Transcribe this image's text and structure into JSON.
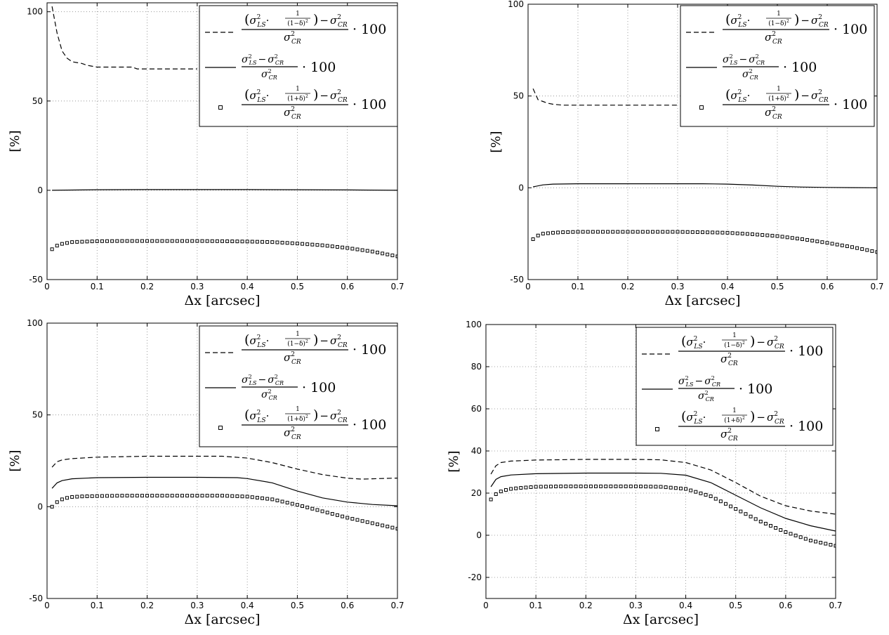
{
  "chart_data": [
    {
      "type": "line",
      "xlabel": "Δx [arcsec]",
      "ylabel": "[%]",
      "xlim": [
        0,
        0.7
      ],
      "ylim": [
        -50,
        105
      ],
      "xticks": [
        "0",
        "0.1",
        "0.2",
        "0.3",
        "0.4",
        "0.5",
        "0.6",
        "0.7"
      ],
      "yticks": [
        "-50",
        "0",
        "50",
        "100"
      ],
      "ytick_values": [
        -50,
        0,
        50,
        100
      ],
      "grid": true,
      "legend_position": "top-right",
      "series": [
        {
          "style": "dashed",
          "x": [
            0.01,
            0.02,
            0.03,
            0.04,
            0.05,
            0.07,
            0.08,
            0.1,
            0.12,
            0.14,
            0.15,
            0.17,
            0.18,
            0.2,
            0.22,
            0.24,
            0.26,
            0.28,
            0.3
          ],
          "y": [
            103,
            88,
            78,
            74,
            72,
            71,
            70,
            69,
            69,
            69,
            69,
            69,
            68,
            68,
            68,
            68,
            68,
            68,
            68
          ]
        },
        {
          "style": "solid",
          "x": [
            0.01,
            0.1,
            0.2,
            0.3,
            0.4,
            0.5,
            0.6,
            0.7
          ],
          "y": [
            0,
            0.3,
            0.4,
            0.4,
            0.4,
            0.3,
            0.2,
            0
          ]
        },
        {
          "style": "squares",
          "x": [
            0.01,
            0.02,
            0.03,
            0.04,
            0.05,
            0.07,
            0.1,
            0.15,
            0.2,
            0.25,
            0.3,
            0.35,
            0.4,
            0.45,
            0.5,
            0.55,
            0.6,
            0.65,
            0.7
          ],
          "y": [
            -33,
            -31,
            -30,
            -29.5,
            -29,
            -28.8,
            -28.5,
            -28.4,
            -28.4,
            -28.4,
            -28.4,
            -28.5,
            -28.7,
            -29,
            -29.8,
            -30.8,
            -32.3,
            -34.3,
            -37
          ]
        }
      ]
    },
    {
      "type": "line",
      "xlabel": "Δx [arcsec]",
      "ylabel": "[%]",
      "xlim": [
        0,
        0.7
      ],
      "ylim": [
        -50,
        100
      ],
      "xticks": [
        "0",
        "0.1",
        "0.2",
        "0.3",
        "0.4",
        "0.5",
        "0.6",
        "0.7"
      ],
      "yticks": [
        "-50",
        "0",
        "50",
        "100"
      ],
      "ytick_values": [
        -50,
        0,
        50,
        100
      ],
      "grid": true,
      "legend_position": "top-right",
      "series": [
        {
          "style": "dashed",
          "x": [
            0.01,
            0.02,
            0.03,
            0.04,
            0.05,
            0.07,
            0.08,
            0.1,
            0.12,
            0.14,
            0.16,
            0.18,
            0.2,
            0.22,
            0.24,
            0.26,
            0.28,
            0.3
          ],
          "y": [
            54,
            48,
            47,
            46,
            45.5,
            45,
            45,
            45,
            45,
            45,
            45,
            45,
            45,
            45,
            45,
            45,
            45,
            45
          ]
        },
        {
          "style": "solid",
          "x": [
            0.01,
            0.03,
            0.05,
            0.1,
            0.2,
            0.3,
            0.35,
            0.4,
            0.45,
            0.5,
            0.55,
            0.6,
            0.65,
            0.7
          ],
          "y": [
            0.5,
            1.6,
            2,
            2.2,
            2.2,
            2.2,
            2.2,
            2,
            1.5,
            0.8,
            0.4,
            0.2,
            0.1,
            0
          ]
        },
        {
          "style": "squares",
          "x": [
            0.01,
            0.02,
            0.03,
            0.05,
            0.07,
            0.1,
            0.15,
            0.2,
            0.25,
            0.3,
            0.35,
            0.4,
            0.45,
            0.5,
            0.55,
            0.6,
            0.65,
            0.7
          ],
          "y": [
            -28,
            -26,
            -25,
            -24.5,
            -24.2,
            -24,
            -24,
            -24,
            -24,
            -24,
            -24.2,
            -24.5,
            -25.3,
            -26.3,
            -28,
            -30,
            -32.3,
            -35
          ]
        }
      ]
    },
    {
      "type": "line",
      "xlabel": "Δx [arcsec]",
      "ylabel": "[%]",
      "xlim": [
        0,
        0.7
      ],
      "ylim": [
        -50,
        100
      ],
      "xticks": [
        "0",
        "0.1",
        "0.2",
        "0.3",
        "0.4",
        "0.5",
        "0.6",
        "0.7"
      ],
      "yticks": [
        "-50",
        "0",
        "50",
        "100"
      ],
      "ytick_values": [
        -50,
        0,
        50,
        100
      ],
      "grid": true,
      "legend_position": "top-right",
      "series": [
        {
          "style": "dashed",
          "x": [
            0.01,
            0.02,
            0.03,
            0.05,
            0.1,
            0.2,
            0.3,
            0.35,
            0.4,
            0.45,
            0.5,
            0.55,
            0.6,
            0.63,
            0.65,
            0.7
          ],
          "y": [
            21.5,
            24.5,
            25.5,
            26.2,
            27,
            27.5,
            27.5,
            27.5,
            26.5,
            24,
            20.5,
            17.5,
            15.5,
            15,
            15.2,
            15.6
          ]
        },
        {
          "style": "solid",
          "x": [
            0.01,
            0.02,
            0.03,
            0.05,
            0.1,
            0.2,
            0.3,
            0.38,
            0.4,
            0.45,
            0.5,
            0.55,
            0.6,
            0.65,
            0.7
          ],
          "y": [
            10,
            13,
            14.2,
            15.2,
            15.8,
            16,
            16,
            15.8,
            15.3,
            13,
            8.5,
            4.8,
            2.5,
            1.2,
            0.5
          ]
        },
        {
          "style": "squares",
          "x": [
            0.01,
            0.02,
            0.03,
            0.04,
            0.05,
            0.07,
            0.1,
            0.15,
            0.2,
            0.25,
            0.3,
            0.35,
            0.4,
            0.45,
            0.5,
            0.55,
            0.6,
            0.65,
            0.7
          ],
          "y": [
            0,
            2.5,
            4,
            4.8,
            5.3,
            5.6,
            5.8,
            6,
            6,
            6,
            6,
            6,
            5.5,
            4,
            1,
            -2.5,
            -6,
            -9,
            -12
          ]
        }
      ]
    },
    {
      "type": "line",
      "xlabel": "Δx [arcsec]",
      "ylabel": "[%]",
      "xlim": [
        0,
        0.7
      ],
      "ylim": [
        -30,
        100
      ],
      "xticks": [
        "0",
        "0.1",
        "0.2",
        "0.3",
        "0.4",
        "0.5",
        "0.6",
        "0.7"
      ],
      "yticks": [
        "-20",
        "0",
        "20",
        "40",
        "60",
        "80",
        "100"
      ],
      "ytick_values": [
        -20,
        0,
        20,
        40,
        60,
        80,
        100
      ],
      "grid": true,
      "legend_position": "top-right",
      "series": [
        {
          "style": "dashed",
          "x": [
            0.01,
            0.02,
            0.03,
            0.05,
            0.1,
            0.2,
            0.3,
            0.35,
            0.4,
            0.45,
            0.5,
            0.55,
            0.6,
            0.65,
            0.7
          ],
          "y": [
            29,
            33,
            34.5,
            35.2,
            35.7,
            36,
            36,
            35.8,
            34.5,
            31,
            25,
            18.5,
            14,
            11.5,
            10
          ]
        },
        {
          "style": "solid",
          "x": [
            0.01,
            0.02,
            0.03,
            0.05,
            0.1,
            0.2,
            0.3,
            0.35,
            0.4,
            0.45,
            0.5,
            0.55,
            0.6,
            0.65,
            0.7
          ],
          "y": [
            23,
            26.5,
            27.8,
            28.6,
            29.2,
            29.5,
            29.5,
            29.4,
            28.5,
            25,
            19,
            13,
            8,
            4.5,
            2
          ]
        },
        {
          "style": "squares",
          "x": [
            0.01,
            0.02,
            0.03,
            0.04,
            0.05,
            0.07,
            0.1,
            0.15,
            0.2,
            0.25,
            0.3,
            0.35,
            0.4,
            0.45,
            0.5,
            0.55,
            0.6,
            0.65,
            0.7
          ],
          "y": [
            17,
            19.5,
            20.8,
            21.5,
            22,
            22.5,
            23,
            23.2,
            23.2,
            23.2,
            23.2,
            23,
            22,
            18.5,
            12.5,
            6.5,
            1.5,
            -2.5,
            -5
          ]
        }
      ]
    }
  ],
  "legend": {
    "dashed": {
      "den": "σ",
      "den_sub": "CR",
      "mult": "· 100",
      "one": "1",
      "frac_den": "(1−δ)"
    },
    "solid": {
      "num": "σ",
      "num_sub1": "LS",
      "num_sub2": "CR",
      "den_sub": "CR",
      "mult": "· 100"
    },
    "squares": {
      "frac_den": "(1+δ)",
      "mult": "· 100"
    }
  }
}
